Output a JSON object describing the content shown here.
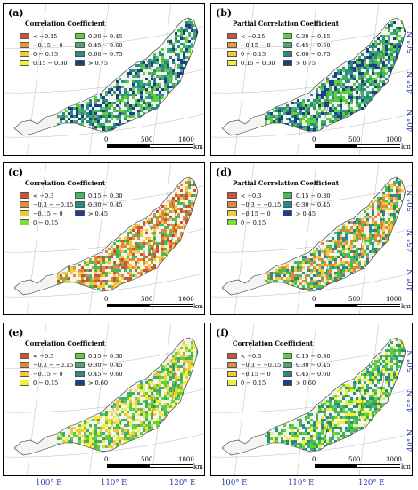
{
  "panels": [
    {
      "label": "(a)",
      "legend_title": "Correlation Coefficient",
      "legend": [
        {
          "label": "< −0.15",
          "color": "#c8553a"
        },
        {
          "label": "−0.15 − 0",
          "color": "#e79a3a"
        },
        {
          "label": "0 − 0.15",
          "color": "#f3c83b"
        },
        {
          "label": "0.15 − 0.30",
          "color": "#f0f03a"
        },
        {
          "label": "0.30 − 0.45",
          "color": "#5fcf3a"
        },
        {
          "label": "0.45 − 0.60",
          "color": "#3fae6a"
        },
        {
          "label": "0.60 − 0.75",
          "color": "#2a8a86"
        },
        {
          "label": "> 0.75",
          "color": "#1d3f8a"
        }
      ],
      "map_colors": [
        "#2a8a86",
        "#1d3f8a",
        "#3fae6a",
        "#5fcf3a"
      ]
    },
    {
      "label": "(b)",
      "legend_title": "Partial Correlation Coefficient",
      "legend": [
        {
          "label": "< −0.15",
          "color": "#c8553a"
        },
        {
          "label": "−0.15 − 0",
          "color": "#e79a3a"
        },
        {
          "label": "0 − 0.15",
          "color": "#f3c83b"
        },
        {
          "label": "0.15 − 0.30",
          "color": "#f0f03a"
        },
        {
          "label": "0.30 − 0.45",
          "color": "#5fcf3a"
        },
        {
          "label": "0.45 − 0.60",
          "color": "#3fae6a"
        },
        {
          "label": "0.60 − 0.75",
          "color": "#2a8a86"
        },
        {
          "label": "> 0.75",
          "color": "#1d3f8a"
        }
      ],
      "map_colors": [
        "#2a8a86",
        "#1d3f8a",
        "#3fae6a",
        "#5fcf3a"
      ]
    },
    {
      "label": "(c)",
      "legend_title": "Correlation Coefficient",
      "legend": [
        {
          "label": "< −0.3",
          "color": "#c8553a"
        },
        {
          "label": "−0.3 − −0.15",
          "color": "#e08a3a"
        },
        {
          "label": "−0.15 − 0",
          "color": "#f3c83b"
        },
        {
          "label": "0 − 0.15",
          "color": "#7fdc3a"
        },
        {
          "label": "0.15 − 0.30",
          "color": "#3fbf5a"
        },
        {
          "label": "0.30 − 0.45",
          "color": "#2a8a86"
        },
        {
          "label": "> 0.45",
          "color": "#1d3f8a"
        }
      ],
      "map_colors": [
        "#c8553a",
        "#e08a3a",
        "#f3c83b",
        "#3fbf5a"
      ]
    },
    {
      "label": "(d)",
      "legend_title": "Partial Correlation Coefficient",
      "legend": [
        {
          "label": "< −0.3",
          "color": "#c8553a"
        },
        {
          "label": "−0.3 − −0.15",
          "color": "#e08a3a"
        },
        {
          "label": "−0.15 − 0",
          "color": "#f3c83b"
        },
        {
          "label": "0 − 0.15",
          "color": "#7fdc3a"
        },
        {
          "label": "0.15 − 0.30",
          "color": "#3fbf5a"
        },
        {
          "label": "0.30 − 0.45",
          "color": "#2a8a86"
        },
        {
          "label": "> 0.45",
          "color": "#1d3f8a"
        }
      ],
      "map_colors": [
        "#f3c83b",
        "#e08a3a",
        "#3fbf5a",
        "#2a8a86"
      ]
    },
    {
      "label": "(e)",
      "legend_title": "Correlation Coefficient",
      "legend": [
        {
          "label": "< −0.3",
          "color": "#c8553a"
        },
        {
          "label": "−0.3 − −0.15",
          "color": "#e08a3a"
        },
        {
          "label": "−0.15 − 0",
          "color": "#f3c83b"
        },
        {
          "label": "0 − 0.15",
          "color": "#f0f03a"
        },
        {
          "label": "0.15 − 0.30",
          "color": "#5fcf3a"
        },
        {
          "label": "0.30 − 0.45",
          "color": "#3fae6a"
        },
        {
          "label": "0.45 − 0.60",
          "color": "#2a8a86"
        },
        {
          "label": "> 0.60",
          "color": "#1d3f8a"
        }
      ],
      "map_colors": [
        "#f0f03a",
        "#5fcf3a",
        "#f3c83b",
        "#3fae6a"
      ]
    },
    {
      "label": "(f)",
      "legend_title": "Correlation Coefficient",
      "legend": [
        {
          "label": "< −0.3",
          "color": "#c8553a"
        },
        {
          "label": "−0.3 − −0.15",
          "color": "#e08a3a"
        },
        {
          "label": "−0.15 − 0",
          "color": "#f3c83b"
        },
        {
          "label": "0 − 0.15",
          "color": "#f0f03a"
        },
        {
          "label": "0.15 − 0.30",
          "color": "#5fcf3a"
        },
        {
          "label": "0.30 − 0.45",
          "color": "#3fae6a"
        },
        {
          "label": "0.45 − 0.60",
          "color": "#2a8a86"
        },
        {
          "label": "> 0.60",
          "color": "#1d3f8a"
        }
      ],
      "map_colors": [
        "#5fcf3a",
        "#3fae6a",
        "#2a8a86",
        "#f0f03a"
      ]
    }
  ],
  "scale": {
    "t0": "0",
    "t1": "500",
    "t2": "1000",
    "unit": "km"
  },
  "lat_labels": [
    "50° N",
    "45° N",
    "40° N"
  ],
  "lon_labels": [
    "100° E",
    "110° E",
    "120° E"
  ],
  "colors": {
    "boundary": "#333333",
    "graticule": "#bbbbbb",
    "axis_label": "#2233aa"
  }
}
